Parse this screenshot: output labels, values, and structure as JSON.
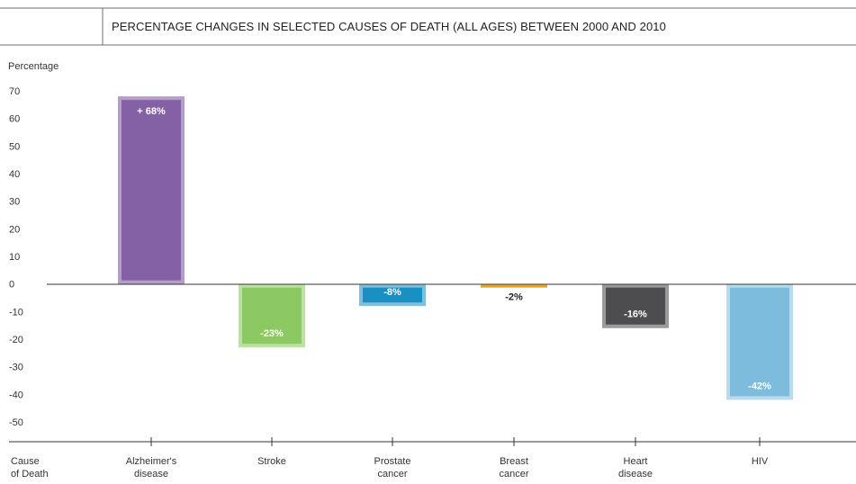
{
  "chart_data": {
    "type": "bar",
    "title": "PERCENTAGE CHANGES IN SELECTED CAUSES OF DEATH (ALL AGES) BETWEEN 2000 AND 2010",
    "ylabel": "Percentage",
    "xlabel": [
      "Cause",
      "of Death"
    ],
    "ylim": [
      -50,
      70
    ],
    "yticks": [
      "70",
      "60",
      "50",
      "40",
      "30",
      "20",
      "10",
      "0",
      "-10",
      "-20",
      "-30",
      "-40",
      "-50"
    ],
    "bars": [
      {
        "category": [
          "Alzheimer's",
          "disease"
        ],
        "value": 68,
        "label": "+ 68%",
        "fill": "#8461a4",
        "border": "#b69cc9",
        "label_color": "#ffffff",
        "label_pos": "inside-top"
      },
      {
        "category": [
          "Stroke"
        ],
        "value": -23,
        "label": "-23%",
        "fill": "#8cc963",
        "border": "#bfe0a4",
        "label_color": "#ffffff",
        "label_pos": "inside-bottom"
      },
      {
        "category": [
          "Prostate",
          "cancer"
        ],
        "value": -8,
        "label": "-8%",
        "fill": "#1a8fc2",
        "border": "#80bede",
        "label_color": "#ffffff",
        "label_pos": "inside-bottom"
      },
      {
        "category": [
          "Breast",
          "cancer"
        ],
        "value": -2,
        "label": "-2%",
        "fill": "#e8a317",
        "border": "#e8a317",
        "label_color": "#222222",
        "label_pos": "below"
      },
      {
        "category": [
          "Heart",
          "disease"
        ],
        "value": -16,
        "label": "-16%",
        "fill": "#4d4d4f",
        "border": "#9a9a9c",
        "label_color": "#ffffff",
        "label_pos": "inside-bottom"
      },
      {
        "category": [
          "HIV"
        ],
        "value": -42,
        "label": "-42%",
        "fill": "#7dbcdc",
        "border": "#b9dbee",
        "label_color": "#ffffff",
        "label_pos": "inside-bottom"
      }
    ]
  }
}
